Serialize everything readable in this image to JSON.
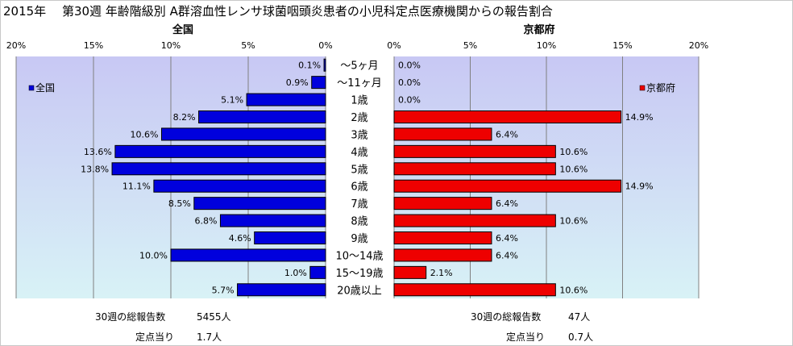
{
  "title": "2015年　 第30週 年齢階級別 A群溶血性レンサ球菌咽頭炎患者の小児科定点医療機関からの報告割合",
  "colors": {
    "national_bar": "#0000dd",
    "kyoto_bar": "#ee0000",
    "plot_top": "#c8c8f4",
    "plot_bottom": "#d8f2f6"
  },
  "chart_data": [
    {
      "type": "bar",
      "orientation": "horizontal",
      "direction": "right-to-left",
      "title": "全国",
      "legend": "全国",
      "legend_position": "top-left",
      "xlim": [
        0,
        20
      ],
      "ticks": [
        "20%",
        "15%",
        "10%",
        "5%",
        "0%"
      ],
      "grid": true,
      "categories": [
        "～5ヶ月",
        "～11ヶ月",
        "1歳",
        "2歳",
        "3歳",
        "4歳",
        "5歳",
        "6歳",
        "7歳",
        "8歳",
        "9歳",
        "10～14歳",
        "15～19歳",
        "20歳以上"
      ],
      "values": [
        0.1,
        0.9,
        5.1,
        8.2,
        10.6,
        13.6,
        13.8,
        11.1,
        8.5,
        6.8,
        4.6,
        10.0,
        1.0,
        5.7
      ],
      "labels": [
        "0.1%",
        "0.9%",
        "5.1%",
        "8.2%",
        "10.6%",
        "13.6%",
        "13.8%",
        "11.1%",
        "8.5%",
        "6.8%",
        "4.6%",
        "10.0%",
        "1.0%",
        "5.7%"
      ]
    },
    {
      "type": "bar",
      "orientation": "horizontal",
      "direction": "left-to-right",
      "title": "京都府",
      "legend": "京都府",
      "legend_position": "top-right",
      "xlim": [
        0,
        20
      ],
      "ticks": [
        "0%",
        "5%",
        "10%",
        "15%",
        "20%"
      ],
      "grid": true,
      "categories": [
        "～5ヶ月",
        "～11ヶ月",
        "1歳",
        "2歳",
        "3歳",
        "4歳",
        "5歳",
        "6歳",
        "7歳",
        "8歳",
        "9歳",
        "10～14歳",
        "15～19歳",
        "20歳以上"
      ],
      "values": [
        0.0,
        0.0,
        0.0,
        14.9,
        6.4,
        10.6,
        10.6,
        14.9,
        6.4,
        10.6,
        6.4,
        6.4,
        2.1,
        10.6
      ],
      "labels": [
        "0.0%",
        "0.0%",
        "0.0%",
        "14.9%",
        "6.4%",
        "10.6%",
        "10.6%",
        "14.9%",
        "6.4%",
        "10.6%",
        "6.4%",
        "6.4%",
        "2.1%",
        "10.6%"
      ]
    }
  ],
  "footer": {
    "national_total_label": "30週の総報告数",
    "national_total_value": "5455人",
    "national_per_label": "定点当り",
    "national_per_value": "1.7人",
    "kyoto_total_label": "30週の総報告数",
    "kyoto_total_value": "47人",
    "kyoto_per_label": "定点当り",
    "kyoto_per_value": "0.7人"
  }
}
